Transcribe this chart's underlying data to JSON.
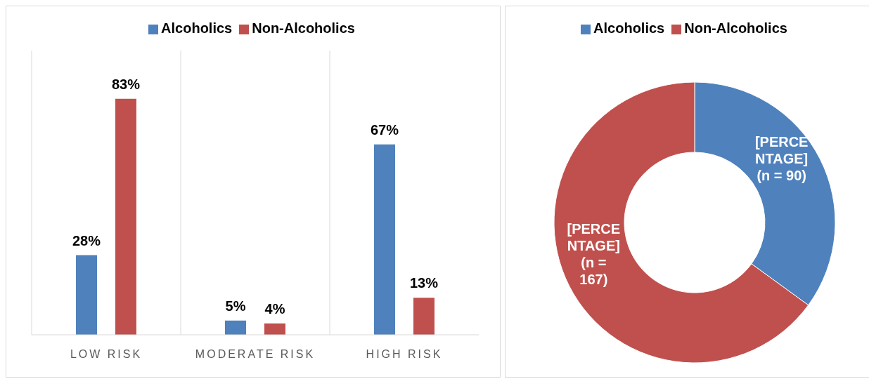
{
  "chart_data": [
    {
      "type": "bar",
      "categories": [
        "LOW RISK",
        "MODERATE RISK",
        "HIGH RISK"
      ],
      "series": [
        {
          "name": "Alcoholics",
          "color": "#4f81bd",
          "values": [
            28,
            5,
            67
          ],
          "value_labels": [
            "28%",
            "5%",
            "67%"
          ]
        },
        {
          "name": "Non-Alcoholics",
          "color": "#c0504d",
          "values": [
            83,
            4,
            13
          ],
          "value_labels": [
            "83%",
            "4%",
            "13%"
          ]
        }
      ],
      "legend": "top",
      "grid": "x"
    },
    {
      "type": "donut",
      "categories": [
        "Alcoholics",
        "Non-Alcoholics"
      ],
      "values": [
        90,
        167
      ],
      "colors": [
        "#4f81bd",
        "#c0504d"
      ],
      "value_labels": [
        "[PERCENTAGE] (n = 90)",
        "[PERCENTAGE] (n = 167)"
      ],
      "legend": "top"
    }
  ]
}
